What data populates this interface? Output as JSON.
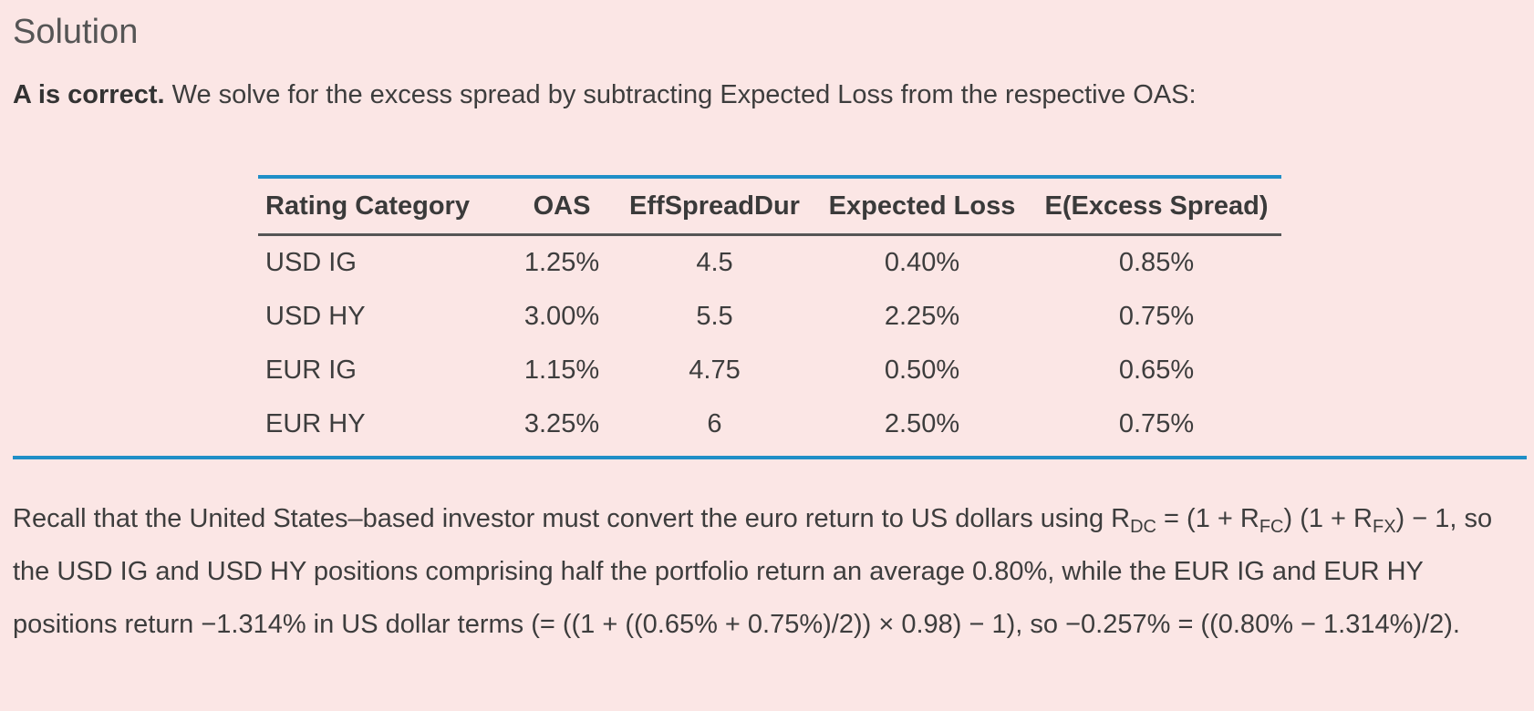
{
  "heading": "Solution",
  "intro": {
    "bold": "A is correct.",
    "text": " We solve for the excess spread by subtracting Expected Loss from the respective OAS:"
  },
  "table": {
    "headers": [
      "Rating Category",
      "OAS",
      "EffSpreadDur",
      "Expected Loss",
      "E(Excess Spread)"
    ],
    "rows": [
      [
        "USD IG",
        "1.25%",
        "4.5",
        "0.40%",
        "0.85%"
      ],
      [
        "USD HY",
        "3.00%",
        "5.5",
        "2.25%",
        "0.75%"
      ],
      [
        "EUR IG",
        "1.15%",
        "4.75",
        "0.50%",
        "0.65%"
      ],
      [
        "EUR HY",
        "3.25%",
        "6",
        "2.50%",
        "0.75%"
      ]
    ]
  },
  "recall": {
    "p1": "Recall that the United States–based investor must convert the euro return to US dollars using R",
    "sub_dc": "DC",
    "p2": " = (1 + R",
    "sub_fc": "FC",
    "p3": ") (1 + R",
    "sub_fx": "FX",
    "p4": ") − 1, so the USD IG and USD HY positions comprising half the portfolio return an average 0.80%, while the EUR IG and EUR HY positions return −1.314% in US dollar terms (= ((1 + ((0.65% + 0.75%)/2)) × 0.98) − 1), so −0.257% = ((0.80% − 1.314%)/2)."
  },
  "colors": {
    "background": "#fbe6e5",
    "rule_blue": "#1f8fc7",
    "rule_dark": "#555555"
  }
}
